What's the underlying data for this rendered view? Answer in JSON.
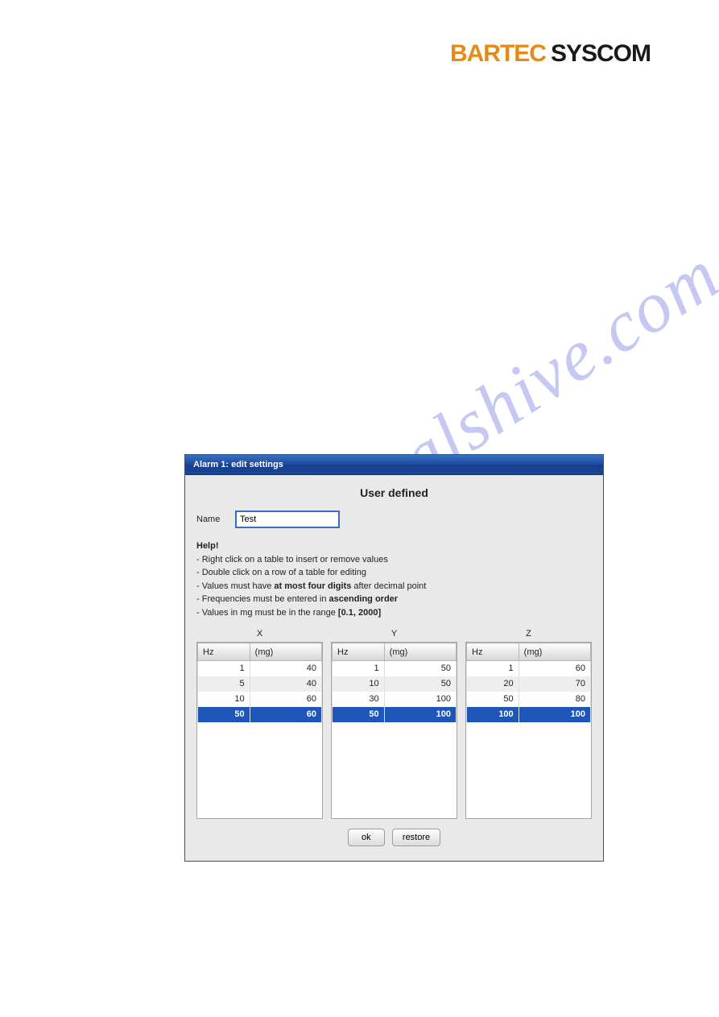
{
  "header": {
    "brand1": "BARTEC",
    "brand2": "SYSCOM"
  },
  "watermark": "manualshive.com",
  "dialog": {
    "title": "Alarm 1: edit settings",
    "section_title": "User defined",
    "name_label": "Name",
    "name_value": "Test",
    "help": {
      "title": "Help!",
      "line1_a": "Right click on a table to insert or remove values",
      "line2_a": "Double click on a row of a table for editing",
      "line3_a": "Values must have ",
      "line3_b": "at most four digits",
      "line3_c": " after decimal point",
      "line4_a": "Frequencies must be entered in ",
      "line4_b": "ascending order",
      "line5_a": "Values in mg must be in the range ",
      "line5_b": "[0.1, 2000]"
    },
    "columns": {
      "hz": "Hz",
      "mg": "(mg)"
    },
    "tables": {
      "x": {
        "label": "X",
        "rows": [
          {
            "hz": "1",
            "mg": "40",
            "sel": false
          },
          {
            "hz": "5",
            "mg": "40",
            "sel": false
          },
          {
            "hz": "10",
            "mg": "60",
            "sel": false
          },
          {
            "hz": "50",
            "mg": "60",
            "sel": true
          }
        ]
      },
      "y": {
        "label": "Y",
        "rows": [
          {
            "hz": "1",
            "mg": "50",
            "sel": false
          },
          {
            "hz": "10",
            "mg": "50",
            "sel": false
          },
          {
            "hz": "30",
            "mg": "100",
            "sel": false
          },
          {
            "hz": "50",
            "mg": "100",
            "sel": true
          }
        ]
      },
      "z": {
        "label": "Z",
        "rows": [
          {
            "hz": "1",
            "mg": "60",
            "sel": false
          },
          {
            "hz": "20",
            "mg": "70",
            "sel": false
          },
          {
            "hz": "50",
            "mg": "80",
            "sel": false
          },
          {
            "hz": "100",
            "mg": "100",
            "sel": true
          }
        ]
      }
    },
    "buttons": {
      "ok": "ok",
      "restore": "restore"
    }
  },
  "style": {
    "titlebar_gradient": [
      "#3a6fc0",
      "#1d4ba0",
      "#163e8c",
      "#1a4698"
    ],
    "selected_row_bg": "#1d56b8",
    "selected_row_fg": "#ffffff",
    "header_brand1_color": "#e68a17",
    "header_brand2_color": "#1a1a1a",
    "dialog_bg": "#e9e9e9",
    "table_header_gradient": [
      "#fdfdfd",
      "#d6d6d6"
    ],
    "table_row_alt_bg": "#eeeeee",
    "button_gradient": [
      "#fdfdfd",
      "#dcdcdc"
    ]
  }
}
